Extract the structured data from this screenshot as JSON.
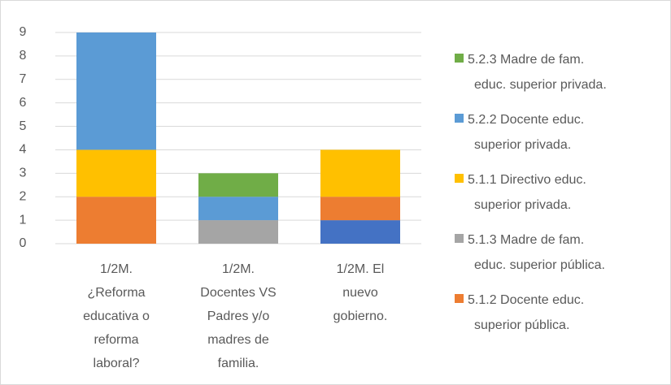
{
  "chart_data": {
    "type": "stacked_bar",
    "categories": [
      "1/2M. ¿Reforma educativa o reforma laboral?",
      "1/2M. Docentes VS Padres y/o madres de familia.",
      "1/2M. El nuevo gobierno."
    ],
    "series": [
      {
        "color": "#4472c4",
        "values": [
          0,
          0,
          1
        ]
      },
      {
        "name": "5.1.2 Docente educ. superior pública.",
        "color": "#ed7d31",
        "values": [
          2,
          0,
          1
        ]
      },
      {
        "name": "5.1.3 Madre de fam. educ. superior pública.",
        "color": "#a5a5a5",
        "values": [
          0,
          1,
          0
        ]
      },
      {
        "name": "5.1.1 Directivo educ. superior privada.",
        "color": "#ffc000",
        "values": [
          2,
          0,
          2
        ]
      },
      {
        "name": "5.2.2 Docente educ. superior privada.",
        "color": "#5b9bd5",
        "values": [
          5,
          1,
          0
        ]
      },
      {
        "name": "5.2.3 Madre de fam. educ. superior privada.",
        "color": "#70ad47",
        "values": [
          0,
          1,
          0
        ]
      }
    ],
    "ylim": [
      0,
      9
    ],
    "yticks": [
      0,
      1,
      2,
      3,
      4,
      5,
      6,
      7,
      8,
      9
    ],
    "grid": true,
    "legend": "right"
  }
}
